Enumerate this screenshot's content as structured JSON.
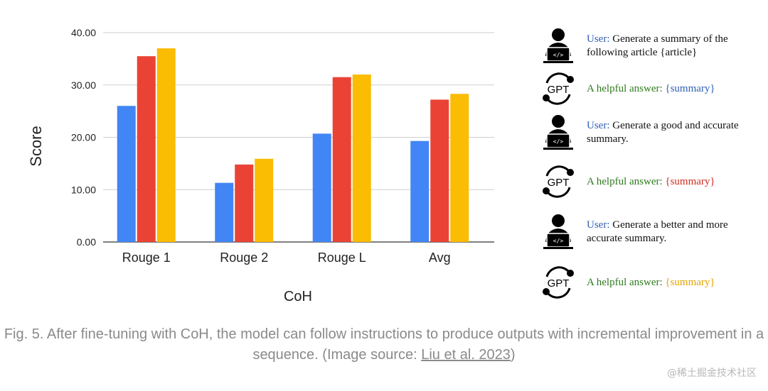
{
  "chart_data": {
    "type": "bar",
    "categories": [
      "Rouge 1",
      "Rouge 2",
      "Rouge L",
      "Avg"
    ],
    "series": [
      {
        "values": [
          26.0,
          11.3,
          20.7,
          19.3
        ],
        "color": "#4285f4"
      },
      {
        "values": [
          35.5,
          14.8,
          31.5,
          27.2
        ],
        "color": "#ea4335"
      },
      {
        "values": [
          37.0,
          15.9,
          32.0,
          28.3
        ],
        "color": "#fbbc04"
      }
    ],
    "xlabel": "CoH",
    "ylabel": "Score",
    "yticks": [
      "0.00",
      "10.00",
      "20.00",
      "30.00",
      "40.00"
    ],
    "ylim": [
      0,
      40
    ],
    "grid": true
  },
  "conversation": [
    {
      "speaker": "User:",
      "text": " Generate a summary of the following article {article}",
      "icon": "user-laptop-icon"
    },
    {
      "speaker": "A helpful answer:",
      "text": " {summary}",
      "icon": "gpt-cycle-icon",
      "value_color": "#2e5fb5"
    },
    {
      "speaker": "User:",
      "text": " Generate a good and accurate summary.",
      "icon": "user-laptop-icon"
    },
    {
      "speaker": "A helpful answer:",
      "text": " {summary}",
      "icon": "gpt-cycle-icon",
      "value_color": "#d02b1f"
    },
    {
      "speaker": "User:",
      "text": " Generate a better and more accurate summary.",
      "icon": "user-laptop-icon"
    },
    {
      "speaker": "A helpful answer:",
      "text": " {summary}",
      "icon": "gpt-cycle-icon",
      "value_color": "#e3a400"
    }
  ],
  "gpt_label": "GPT",
  "caption": {
    "text": "Fig. 5. After fine-tuning with CoH, the model can follow instructions to produce outputs with incremental improvement in a sequence. (Image source: ",
    "link": "Liu et al. 2023",
    "suffix": ")"
  },
  "watermark": "@稀土掘金技术社区"
}
